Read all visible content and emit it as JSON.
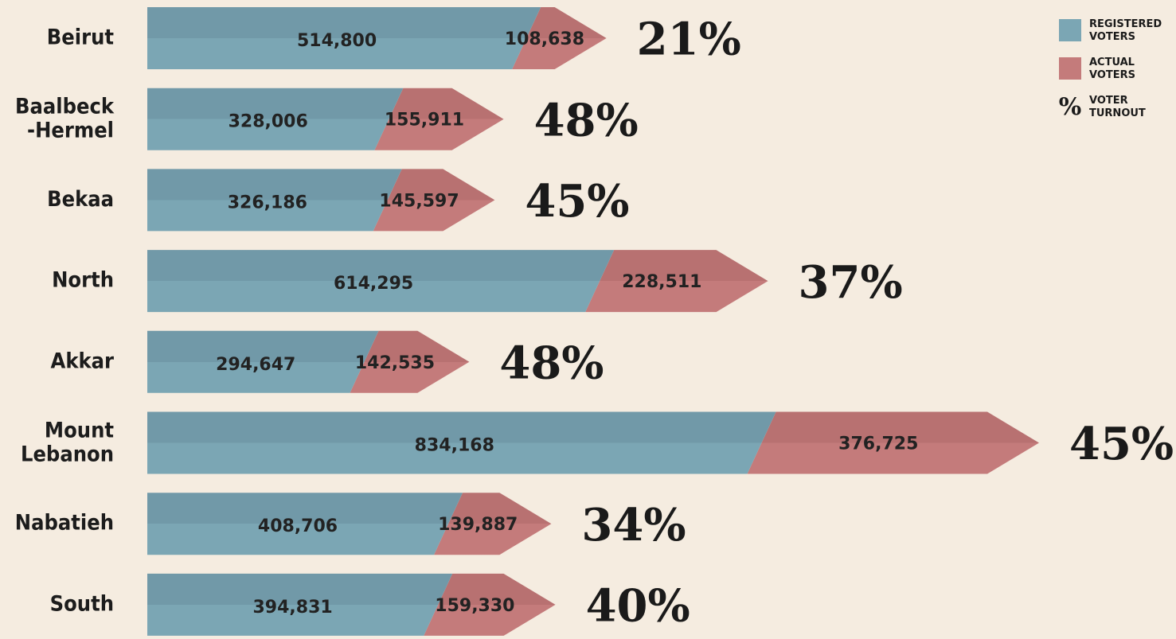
{
  "chart_data": {
    "type": "stacked-arrow-bar",
    "categories": [
      "Beirut",
      "Baalbeck -Hermel",
      "Bekaa",
      "North",
      "Akkar",
      "Mount Lebanon",
      "Nabatieh",
      "South"
    ],
    "series": [
      {
        "name": "REGISTERED VOTERS",
        "color": "#7ba6b4",
        "values": [
          514800,
          328006,
          326186,
          614295,
          294647,
          834168,
          408706,
          394831
        ],
        "value_labels": [
          "514,800",
          "328,006",
          "326,186",
          "614,295",
          "294,647",
          "834,168",
          "408,706",
          "394,831"
        ]
      },
      {
        "name": "ACTUAL VOTERS",
        "color": "#c47b7b",
        "values": [
          108638,
          155911,
          145597,
          228511,
          142535,
          376725,
          139887,
          159330
        ],
        "value_labels": [
          "108,638",
          "155,911",
          "145,597",
          "228,511",
          "142,535",
          "376,725",
          "139,887",
          "159,330"
        ]
      }
    ],
    "turnout": {
      "name": "VOTER TURNOUT",
      "symbol": "%",
      "values": [
        21,
        48,
        45,
        37,
        48,
        45,
        34,
        40
      ],
      "value_labels": [
        "21%",
        "48%",
        "45%",
        "37%",
        "48%",
        "45%",
        "34%",
        "40%"
      ]
    }
  }
}
